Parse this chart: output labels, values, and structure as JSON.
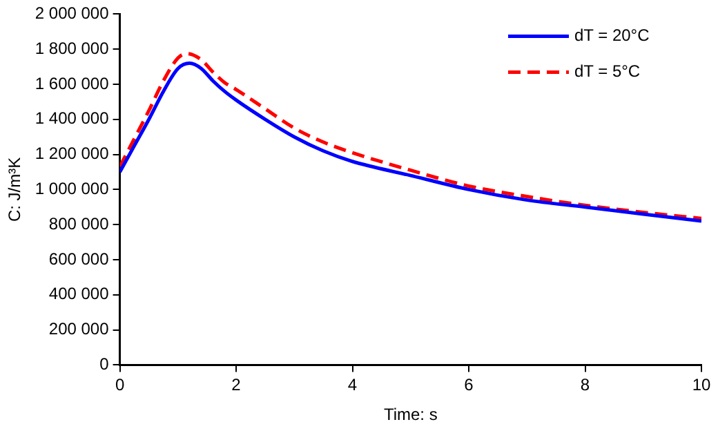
{
  "chart_data": {
    "type": "line",
    "xlabel": "Time: s",
    "ylabel": "C: J/m³K",
    "xlim": [
      0,
      10
    ],
    "xticks": [
      0,
      2,
      4,
      6,
      8,
      10
    ],
    "ylim": [
      0,
      2000000
    ],
    "yticks": [
      0,
      {
        "value": 200000,
        "label": "200 000"
      },
      {
        "value": 400000,
        "label": "400 000"
      },
      {
        "value": 600000,
        "label": "600 000"
      },
      {
        "value": 800000,
        "label": "800 000"
      },
      {
        "value": 1000000,
        "label": "1 000 000"
      },
      {
        "value": 1200000,
        "label": "1 200 000"
      },
      {
        "value": 1400000,
        "label": "1 400 000"
      },
      {
        "value": 1600000,
        "label": "1 600 000"
      },
      {
        "value": 1800000,
        "label": "1 800 000"
      },
      {
        "value": 2000000,
        "label": "2 000 000"
      }
    ],
    "grid": false,
    "legend": "top right",
    "marker": "none",
    "series": [
      {
        "name": "dT = 20°C",
        "color": "#0000ff",
        "line_style": "solid",
        "x": [
          0,
          0.25,
          0.5,
          0.75,
          1,
          1.2,
          1.4,
          1.6,
          1.8,
          2,
          2.5,
          3,
          3.5,
          4,
          5,
          6,
          7,
          8,
          9,
          10
        ],
        "values": [
          1100000,
          1250000,
          1400000,
          1560000,
          1690000,
          1720000,
          1690000,
          1620000,
          1560000,
          1510000,
          1400000,
          1300000,
          1220000,
          1160000,
          1080000,
          1000000,
          940000,
          900000,
          860000,
          820000
        ]
      },
      {
        "name": "dT = 5°C",
        "color": "#ff0000",
        "line_style": "dashed",
        "x": [
          0,
          0.25,
          0.5,
          0.75,
          1,
          1.15,
          1.4,
          1.6,
          1.8,
          2,
          2.5,
          3,
          3.5,
          4,
          5,
          6,
          7,
          8,
          9,
          10
        ],
        "values": [
          1130000,
          1290000,
          1450000,
          1620000,
          1750000,
          1775000,
          1740000,
          1670000,
          1610000,
          1570000,
          1460000,
          1350000,
          1270000,
          1210000,
          1110000,
          1020000,
          960000,
          910000,
          870000,
          835000
        ]
      }
    ]
  }
}
